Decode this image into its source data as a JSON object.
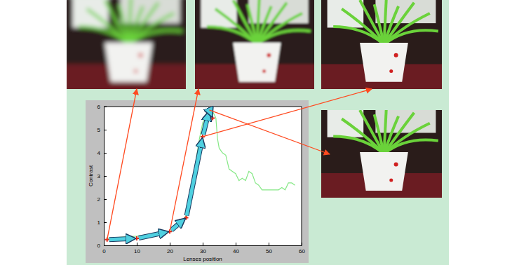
{
  "chart_data": {
    "type": "line",
    "x_label": "Lenses position",
    "y_label": "Contrast",
    "xlim": [
      0,
      60
    ],
    "xticks": [
      0,
      10,
      20,
      30,
      40,
      50,
      60
    ],
    "ylim": [
      0,
      6
    ],
    "yticks": [
      0,
      1,
      2,
      3,
      4,
      5,
      6
    ],
    "grid": false,
    "series": [
      {
        "type": "line",
        "color": "#86e886",
        "x": [
          1,
          5,
          10,
          15,
          20,
          22,
          23,
          24,
          25,
          26,
          27,
          28,
          29,
          30,
          31,
          32,
          33,
          34,
          34.5,
          35,
          36,
          37,
          38,
          39,
          40,
          41,
          42,
          43,
          44,
          45,
          46,
          47,
          48,
          50,
          52,
          53,
          54,
          55,
          56,
          57,
          58
        ],
        "values": [
          0.3,
          0.35,
          0.4,
          0.5,
          0.6,
          0.75,
          0.9,
          1.05,
          1.3,
          1.9,
          2.7,
          3.7,
          4.6,
          5.3,
          5.6,
          5.8,
          5.8,
          5.5,
          4.6,
          4.2,
          4.0,
          3.9,
          3.3,
          3.2,
          3.1,
          2.8,
          2.9,
          2.8,
          3.2,
          3.1,
          2.7,
          2.6,
          2.4,
          2.4,
          2.4,
          2.4,
          2.5,
          2.4,
          2.7,
          2.7,
          2.6
        ]
      },
      {
        "type": "scatter",
        "color": "#e02818",
        "marker": "plus",
        "x": [
          1,
          10,
          20,
          25,
          30,
          32,
          33
        ],
        "values": [
          0.25,
          0.3,
          0.6,
          1.2,
          4.7,
          5.85,
          5.5
        ]
      }
    ]
  }
}
